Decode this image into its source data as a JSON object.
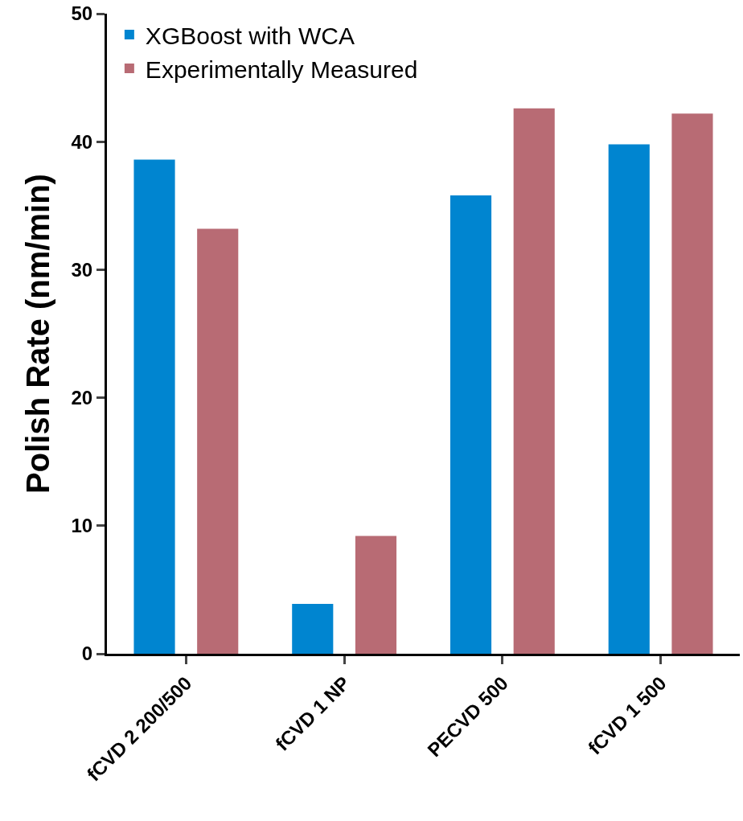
{
  "chart_data": {
    "type": "bar",
    "ylabel": "Polish Rate (nm/min)",
    "categories": [
      "fCVD 2 200/500",
      "fCVD 1 NP",
      "PECVD 500",
      "fCVD 1 500"
    ],
    "series": [
      {
        "name": "XGBoost with WCA",
        "color": "#0085d0",
        "values": [
          38.6,
          3.9,
          35.8,
          39.8
        ]
      },
      {
        "name": "Experimentally Measured",
        "color": "#b86b74",
        "values": [
          33.2,
          9.2,
          42.6,
          42.2
        ]
      }
    ],
    "ylim": [
      0,
      50
    ],
    "yticks": [
      0,
      10,
      20,
      30,
      40,
      50
    ],
    "grid": false,
    "legend": "top left"
  }
}
